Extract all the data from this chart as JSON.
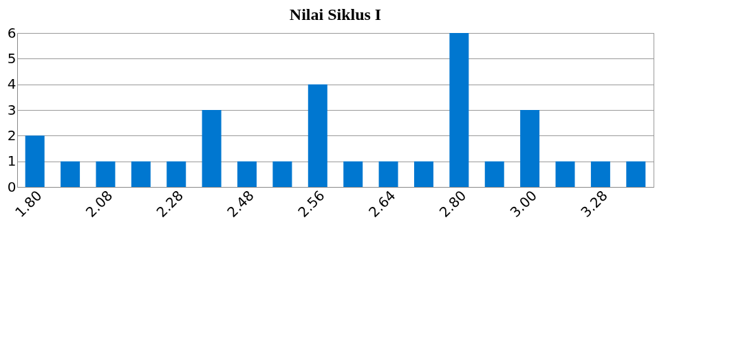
{
  "chart_data": {
    "type": "bar",
    "title": "Nilai Siklus I",
    "categories": [
      "1.80",
      null,
      "2.08",
      null,
      "2.28",
      null,
      "2.48",
      null,
      "2.56",
      null,
      "2.64",
      null,
      "2.80",
      null,
      "3.00",
      null,
      "3.28",
      null
    ],
    "values": [
      2,
      1,
      1,
      1,
      1,
      3,
      1,
      1,
      4,
      1,
      1,
      1,
      6,
      1,
      3,
      1,
      1,
      1
    ],
    "color": "#0077d0",
    "ylim": [
      0,
      6
    ],
    "yticks": [
      0,
      1,
      2,
      3,
      4,
      5,
      6
    ],
    "grid": "y"
  }
}
